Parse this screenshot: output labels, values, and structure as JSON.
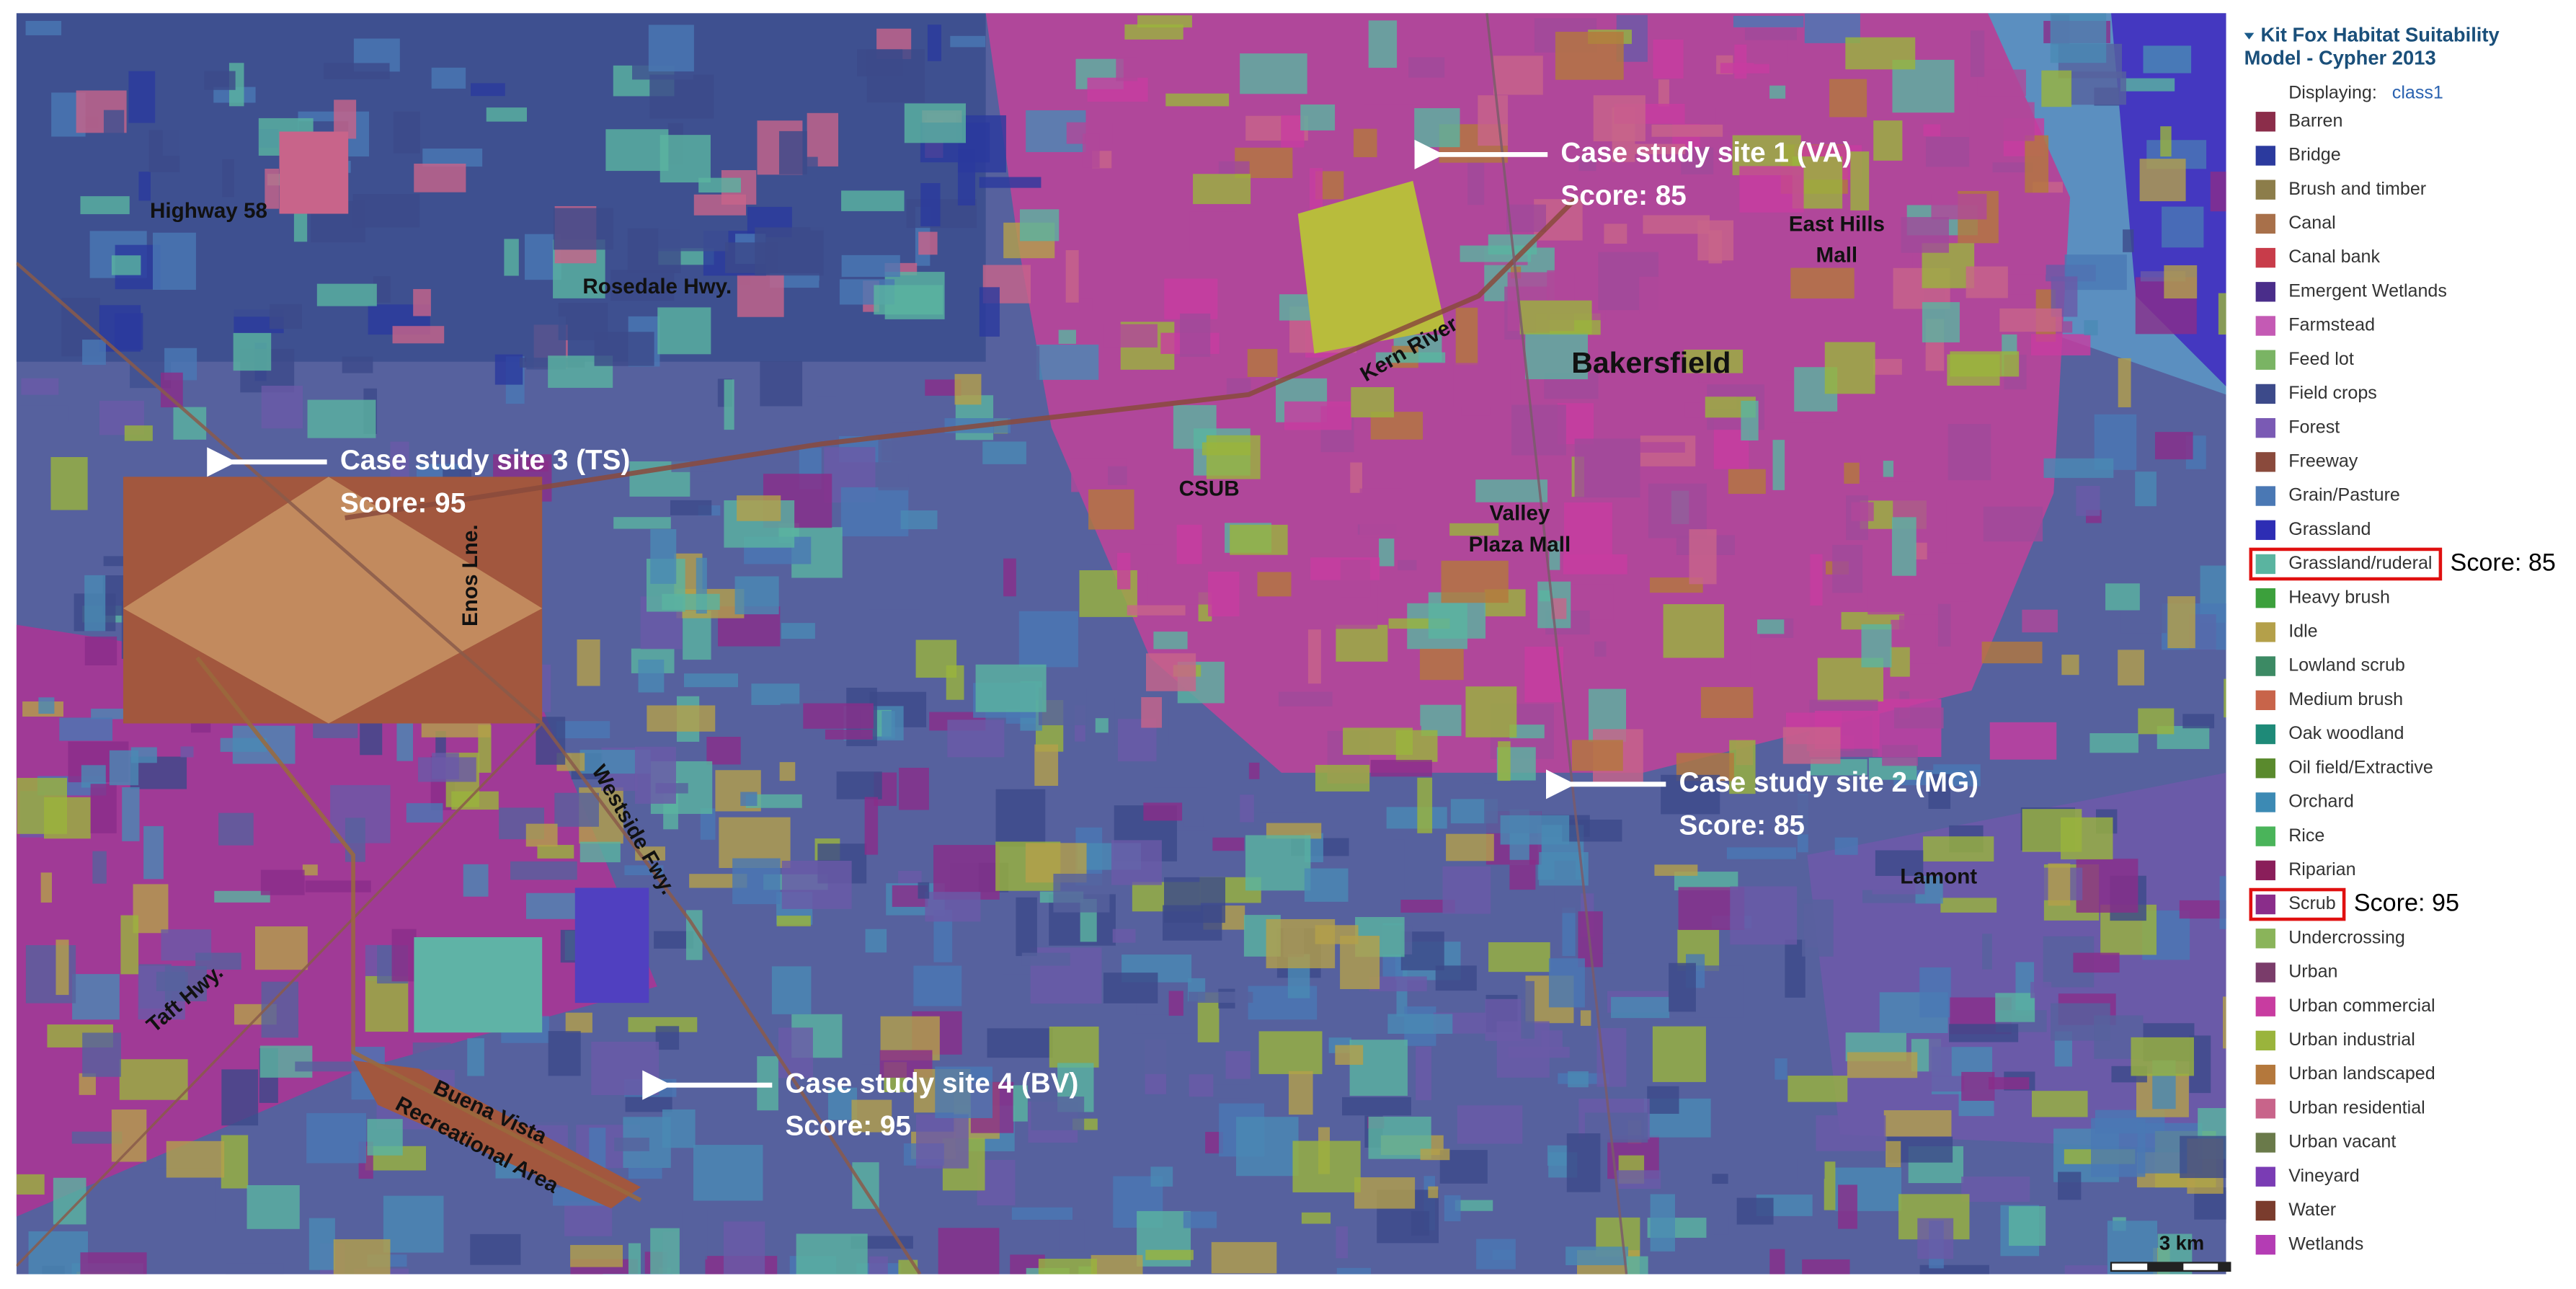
{
  "map": {
    "labels": [
      "Highway 58",
      "Rosedale Hwy.",
      "Kern River",
      "Bakersfield",
      "East Hills",
      "Mall",
      "CSUB",
      "Valley",
      "Plaza Mall",
      "Enos Lne.",
      "Westside Fwy.",
      "Lamont",
      "Taft Hwy.",
      "Buena Vista",
      "Recreational Area"
    ],
    "annotations": [
      {
        "title": "Case study site 1 (VA)",
        "score": "Score: 85"
      },
      {
        "title": "Case study site 3 (TS)",
        "score": "Score: 95"
      },
      {
        "title": "Case study site 2 (MG)",
        "score": "Score: 85"
      },
      {
        "title": "Case study site 4 (BV)",
        "score": "Score: 95"
      }
    ],
    "scale": "3 km"
  },
  "legend": {
    "title_lines": [
      "Kit Fox Habitat Suitability",
      "Model - Cypher 2013"
    ],
    "displaying_label": "Displaying:",
    "displaying_value": "class1",
    "items": [
      {
        "name": "Barren",
        "color": "#8b2d4a"
      },
      {
        "name": "Bridge",
        "color": "#2b3a9e"
      },
      {
        "name": "Brush and timber",
        "color": "#8c7d4a"
      },
      {
        "name": "Canal",
        "color": "#a8704a"
      },
      {
        "name": "Canal bank",
        "color": "#c83c4a"
      },
      {
        "name": "Emergent Wetlands",
        "color": "#4a2d8a"
      },
      {
        "name": "Farmstead",
        "color": "#c45ab4"
      },
      {
        "name": "Feed lot",
        "color": "#7ab464"
      },
      {
        "name": "Field crops",
        "color": "#3c4a8a"
      },
      {
        "name": "Forest",
        "color": "#7a5ab4"
      },
      {
        "name": "Freeway",
        "color": "#8a4a3c"
      },
      {
        "name": "Grain/Pasture",
        "color": "#4a78b4"
      },
      {
        "name": "Grassland",
        "color": "#2d2db4"
      },
      {
        "name": "Grassland/ruderal",
        "color": "#5ab4a0",
        "score": "Score: 85"
      },
      {
        "name": "Heavy brush",
        "color": "#3ca03c"
      },
      {
        "name": "Idle",
        "color": "#b4a04a"
      },
      {
        "name": "Lowland scrub",
        "color": "#3c8a64"
      },
      {
        "name": "Medium brush",
        "color": "#c8644a"
      },
      {
        "name": "Oak woodland",
        "color": "#1e8a78"
      },
      {
        "name": "Oil field/Extractive",
        "color": "#5a8a2d"
      },
      {
        "name": "Orchard",
        "color": "#3c8ab4"
      },
      {
        "name": "Rice",
        "color": "#4ab45a"
      },
      {
        "name": "Riparian",
        "color": "#8a1e5a"
      },
      {
        "name": "Scrub",
        "color": "#8a2d8a",
        "score": "Score: 95"
      },
      {
        "name": "Undercrossing",
        "color": "#8ab45a"
      },
      {
        "name": "Urban",
        "color": "#7a3c6a"
      },
      {
        "name": "Urban commercial",
        "color": "#c83ca0"
      },
      {
        "name": "Urban industrial",
        "color": "#9ab43c"
      },
      {
        "name": "Urban landscaped",
        "color": "#b4783c"
      },
      {
        "name": "Urban residential",
        "color": "#c8648a"
      },
      {
        "name": "Urban vacant",
        "color": "#6a7a4a"
      },
      {
        "name": "Vineyard",
        "color": "#7a3cb4"
      },
      {
        "name": "Water",
        "color": "#7a3c2d"
      },
      {
        "name": "Wetlands",
        "color": "#b43cb4"
      }
    ]
  }
}
